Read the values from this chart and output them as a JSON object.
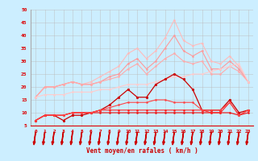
{
  "x": [
    0,
    1,
    2,
    3,
    4,
    5,
    6,
    7,
    8,
    9,
    10,
    11,
    12,
    13,
    14,
    15,
    16,
    17,
    18,
    19,
    20,
    21,
    22,
    23
  ],
  "series": [
    {
      "name": "line1_lightest_pink",
      "color": "#ffbbbb",
      "linewidth": 0.8,
      "marker": "o",
      "markersize": 1.5,
      "values": [
        16,
        20,
        20,
        21,
        22,
        21,
        22,
        24,
        26,
        28,
        33,
        35,
        31,
        34,
        39,
        46,
        38,
        36,
        37,
        30,
        29,
        32,
        28,
        22
      ]
    },
    {
      "name": "line2_light_pink",
      "color": "#ff9999",
      "linewidth": 0.8,
      "marker": "o",
      "markersize": 1.5,
      "values": [
        16,
        20,
        20,
        21,
        22,
        21,
        21,
        22,
        24,
        25,
        29,
        31,
        27,
        30,
        35,
        40,
        34,
        32,
        34,
        27,
        27,
        30,
        27,
        22
      ]
    },
    {
      "name": "line3_medium_pink_rising",
      "color": "#ffaaaa",
      "linewidth": 0.8,
      "marker": "o",
      "markersize": 1.5,
      "values": [
        16,
        20,
        20,
        21,
        22,
        21,
        21,
        22,
        23,
        24,
        27,
        29,
        25,
        28,
        31,
        33,
        30,
        29,
        30,
        25,
        25,
        28,
        26,
        22
      ]
    },
    {
      "name": "line4_diagonal_pink",
      "color": "#ffcccc",
      "linewidth": 0.8,
      "marker": "o",
      "markersize": 1.5,
      "values": [
        16,
        17,
        17,
        17,
        18,
        18,
        18,
        19,
        19,
        20,
        21,
        21,
        21,
        22,
        23,
        24,
        24,
        25,
        25,
        26,
        27,
        28,
        29,
        22
      ]
    },
    {
      "name": "line5_dark_red_spiky",
      "color": "#cc0000",
      "linewidth": 0.9,
      "marker": "o",
      "markersize": 2.0,
      "values": [
        7,
        9,
        9,
        7,
        9,
        9,
        10,
        11,
        13,
        16,
        19,
        16,
        16,
        21,
        23,
        25,
        23,
        19,
        11,
        11,
        11,
        15,
        10,
        11
      ]
    },
    {
      "name": "line6_red_low1",
      "color": "#ee1111",
      "linewidth": 0.8,
      "marker": "o",
      "markersize": 1.5,
      "values": [
        7,
        9,
        9,
        9,
        10,
        10,
        10,
        10,
        10,
        10,
        10,
        10,
        10,
        10,
        10,
        10,
        10,
        10,
        10,
        10,
        10,
        10,
        9,
        10
      ]
    },
    {
      "name": "line7_red_low2",
      "color": "#ff2222",
      "linewidth": 0.8,
      "marker": "o",
      "markersize": 1.5,
      "values": [
        7,
        9,
        9,
        9,
        10,
        10,
        10,
        11,
        11,
        11,
        11,
        11,
        11,
        11,
        11,
        11,
        11,
        11,
        11,
        10,
        10,
        14,
        9,
        11
      ]
    },
    {
      "name": "line8_red_mid",
      "color": "#ff4444",
      "linewidth": 0.8,
      "marker": "o",
      "markersize": 1.5,
      "values": [
        7,
        9,
        9,
        9,
        10,
        10,
        10,
        11,
        12,
        13,
        14,
        14,
        14,
        15,
        15,
        14,
        14,
        14,
        11,
        11,
        11,
        14,
        9,
        11
      ]
    }
  ],
  "xlabel": "Vent moyen/en rafales ( km/h )",
  "xlim": [
    -0.5,
    23.5
  ],
  "ylim": [
    5,
    50
  ],
  "yticks": [
    5,
    10,
    15,
    20,
    25,
    30,
    35,
    40,
    45,
    50
  ],
  "xticks": [
    0,
    1,
    2,
    3,
    4,
    5,
    6,
    7,
    8,
    9,
    10,
    11,
    12,
    13,
    14,
    15,
    16,
    17,
    18,
    19,
    20,
    21,
    22,
    23
  ],
  "bg_color": "#cceeff",
  "grid_color": "#bbbbbb",
  "tick_color": "#dd0000",
  "label_color": "#cc0000",
  "arrow_color": "#cc0000"
}
